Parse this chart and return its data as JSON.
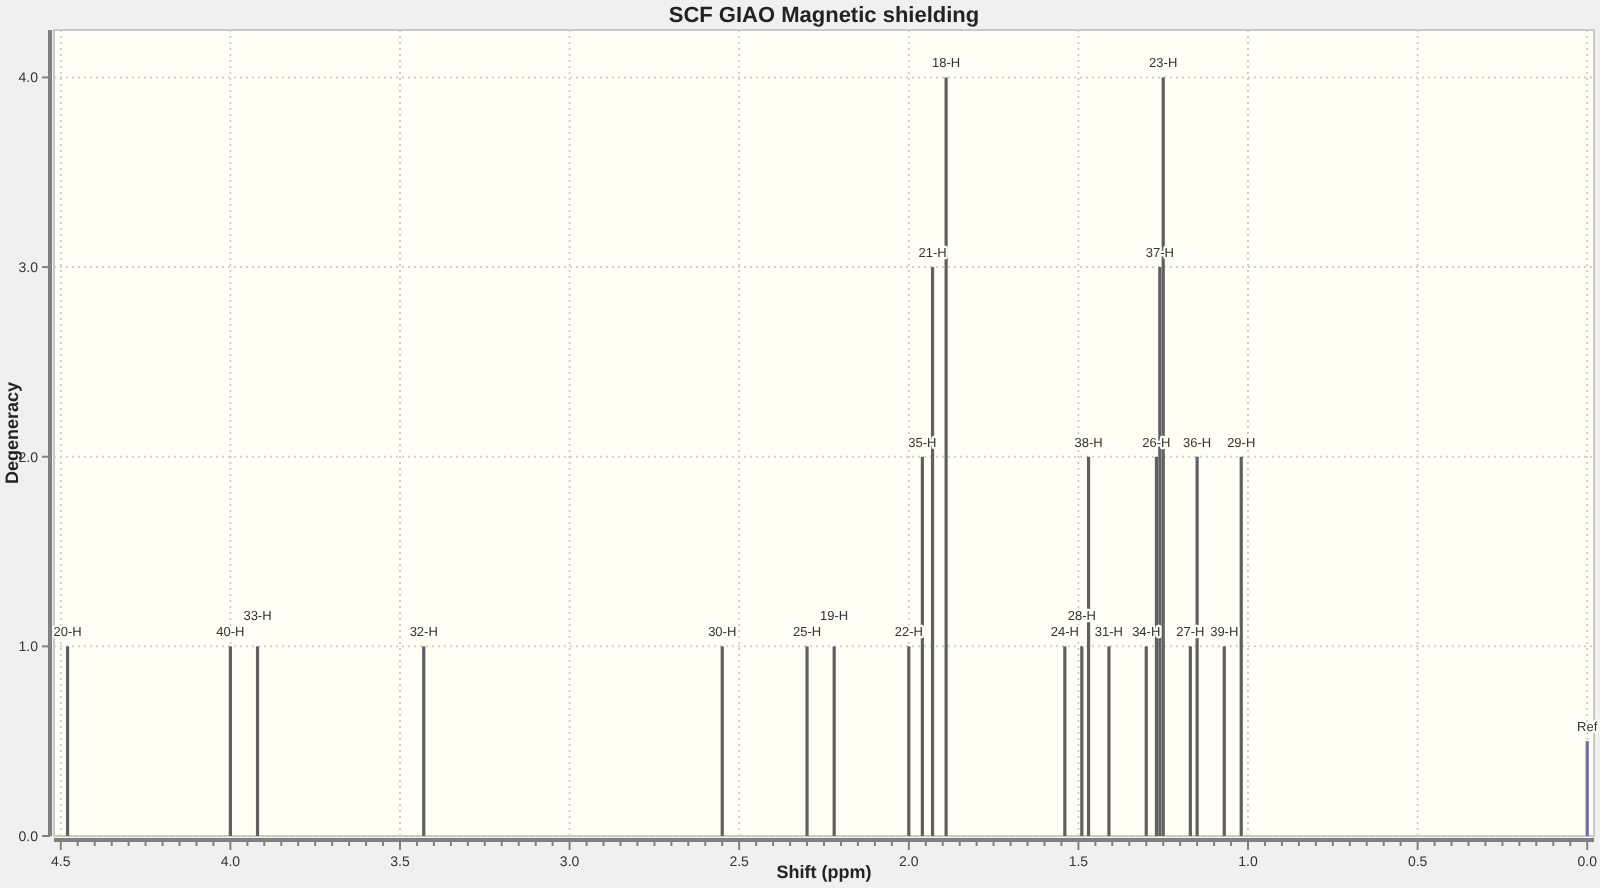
{
  "chart_data": {
    "type": "bar",
    "title": "SCF GIAO Magnetic shielding",
    "xlabel": "Shift (ppm)",
    "ylabel": "Degeneracy",
    "x": [
      4.48,
      4.0,
      3.92,
      3.43,
      2.55,
      2.3,
      2.22,
      2.0,
      1.96,
      1.93,
      1.89,
      1.54,
      1.49,
      1.47,
      1.41,
      1.3,
      1.27,
      1.26,
      1.25,
      1.17,
      1.15,
      1.07,
      1.02,
      0.0
    ],
    "values": [
      1,
      1,
      1,
      1,
      1,
      1,
      1,
      1,
      2,
      3,
      4,
      1,
      1,
      2,
      1,
      1,
      2,
      3,
      4,
      1,
      2,
      1,
      2,
      0.5
    ],
    "colors": [
      "#606060",
      "#606060",
      "#606060",
      "#606060",
      "#606060",
      "#606060",
      "#606060",
      "#606060",
      "#606060",
      "#606060",
      "#606060",
      "#606060",
      "#606060",
      "#606060",
      "#606060",
      "#606060",
      "#606060",
      "#606060",
      "#606060",
      "#606060",
      "#606060",
      "#606060",
      "#606060",
      "#7070a0"
    ],
    "annotations": [
      {
        "text": "20-H",
        "x": 4.48,
        "y": 1
      },
      {
        "text": "40-H",
        "x": 4.0,
        "y": 1
      },
      {
        "text": "33-H",
        "x": 3.92,
        "y": 1
      },
      {
        "text": "32-H",
        "x": 3.43,
        "y": 1
      },
      {
        "text": "30-H",
        "x": 2.55,
        "y": 1
      },
      {
        "text": "25-H",
        "x": 2.3,
        "y": 1
      },
      {
        "text": "19-H",
        "x": 2.22,
        "y": 1
      },
      {
        "text": "22-H",
        "x": 2.0,
        "y": 1
      },
      {
        "text": "35-H",
        "x": 1.96,
        "y": 2
      },
      {
        "text": "21-H",
        "x": 1.93,
        "y": 3
      },
      {
        "text": "18-H",
        "x": 1.89,
        "y": 4
      },
      {
        "text": "24-H",
        "x": 1.54,
        "y": 1
      },
      {
        "text": "28-H",
        "x": 1.49,
        "y": 1
      },
      {
        "text": "38-H",
        "x": 1.47,
        "y": 2
      },
      {
        "text": "31-H",
        "x": 1.41,
        "y": 1
      },
      {
        "text": "34-H",
        "x": 1.3,
        "y": 1
      },
      {
        "text": "26-H",
        "x": 1.27,
        "y": 2
      },
      {
        "text": "37-H",
        "x": 1.26,
        "y": 3
      },
      {
        "text": "23-H",
        "x": 1.25,
        "y": 4
      },
      {
        "text": "27-H",
        "x": 1.17,
        "y": 1
      },
      {
        "text": "36-H",
        "x": 1.15,
        "y": 2
      },
      {
        "text": "39-H",
        "x": 1.07,
        "y": 1
      },
      {
        "text": "29-H",
        "x": 1.02,
        "y": 2
      },
      {
        "text": "Ref",
        "x": 0.0,
        "y": 0.5
      }
    ],
    "xlim": [
      4.52,
      -0.02
    ],
    "ylim": [
      0,
      4.25
    ],
    "xticks": [
      {
        "value": 4.5,
        "label": "4.5"
      },
      {
        "value": 4.45,
        "label": null
      },
      {
        "value": 4.4,
        "label": null
      },
      {
        "value": 4.35,
        "label": null
      },
      {
        "value": 4.3,
        "label": null
      },
      {
        "value": 4.25,
        "label": null
      },
      {
        "value": 4.2,
        "label": null
      },
      {
        "value": 4.15,
        "label": null
      },
      {
        "value": 4.1,
        "label": null
      },
      {
        "value": 4.05,
        "label": null
      },
      {
        "value": 4.0,
        "label": "4.0"
      },
      {
        "value": 3.95,
        "label": null
      },
      {
        "value": 3.9,
        "label": null
      },
      {
        "value": 3.85,
        "label": null
      },
      {
        "value": 3.8,
        "label": null
      },
      {
        "value": 3.75,
        "label": null
      },
      {
        "value": 3.7,
        "label": null
      },
      {
        "value": 3.65,
        "label": null
      },
      {
        "value": 3.6,
        "label": null
      },
      {
        "value": 3.55,
        "label": null
      },
      {
        "value": 3.5,
        "label": "3.5"
      },
      {
        "value": 3.45,
        "label": null
      },
      {
        "value": 3.4,
        "label": null
      },
      {
        "value": 3.35,
        "label": null
      },
      {
        "value": 3.3,
        "label": null
      },
      {
        "value": 3.25,
        "label": null
      },
      {
        "value": 3.2,
        "label": null
      },
      {
        "value": 3.15,
        "label": null
      },
      {
        "value": 3.1,
        "label": null
      },
      {
        "value": 3.05,
        "label": null
      },
      {
        "value": 3.0,
        "label": "3.0"
      },
      {
        "value": 2.95,
        "label": null
      },
      {
        "value": 2.9,
        "label": null
      },
      {
        "value": 2.85,
        "label": null
      },
      {
        "value": 2.8,
        "label": null
      },
      {
        "value": 2.75,
        "label": null
      },
      {
        "value": 2.7,
        "label": null
      },
      {
        "value": 2.65,
        "label": null
      },
      {
        "value": 2.6,
        "label": null
      },
      {
        "value": 2.55,
        "label": null
      },
      {
        "value": 2.5,
        "label": "2.5"
      },
      {
        "value": 2.45,
        "label": null
      },
      {
        "value": 2.4,
        "label": null
      },
      {
        "value": 2.35,
        "label": null
      },
      {
        "value": 2.3,
        "label": null
      },
      {
        "value": 2.25,
        "label": null
      },
      {
        "value": 2.2,
        "label": null
      },
      {
        "value": 2.15,
        "label": null
      },
      {
        "value": 2.1,
        "label": null
      },
      {
        "value": 2.05,
        "label": null
      },
      {
        "value": 2.0,
        "label": "2.0"
      },
      {
        "value": 1.95,
        "label": null
      },
      {
        "value": 1.9,
        "label": null
      },
      {
        "value": 1.85,
        "label": null
      },
      {
        "value": 1.8,
        "label": null
      },
      {
        "value": 1.75,
        "label": null
      },
      {
        "value": 1.7,
        "label": null
      },
      {
        "value": 1.65,
        "label": null
      },
      {
        "value": 1.6,
        "label": null
      },
      {
        "value": 1.55,
        "label": null
      },
      {
        "value": 1.5,
        "label": "1.5"
      },
      {
        "value": 1.45,
        "label": null
      },
      {
        "value": 1.4,
        "label": null
      },
      {
        "value": 1.35,
        "label": null
      },
      {
        "value": 1.3,
        "label": null
      },
      {
        "value": 1.25,
        "label": null
      },
      {
        "value": 1.2,
        "label": null
      },
      {
        "value": 1.15,
        "label": null
      },
      {
        "value": 1.1,
        "label": null
      },
      {
        "value": 1.05,
        "label": null
      },
      {
        "value": 1.0,
        "label": "1.0"
      },
      {
        "value": 0.95,
        "label": null
      },
      {
        "value": 0.9,
        "label": null
      },
      {
        "value": 0.85,
        "label": null
      },
      {
        "value": 0.8,
        "label": null
      },
      {
        "value": 0.75,
        "label": null
      },
      {
        "value": 0.7,
        "label": null
      },
      {
        "value": 0.65,
        "label": null
      },
      {
        "value": 0.6,
        "label": null
      },
      {
        "value": 0.55,
        "label": null
      },
      {
        "value": 0.5,
        "label": "0.5"
      },
      {
        "value": 0.45,
        "label": null
      },
      {
        "value": 0.4,
        "label": null
      },
      {
        "value": 0.35,
        "label": null
      },
      {
        "value": 0.3,
        "label": null
      },
      {
        "value": 0.25,
        "label": null
      },
      {
        "value": 0.2,
        "label": null
      },
      {
        "value": 0.15,
        "label": null
      },
      {
        "value": 0.1,
        "label": null
      },
      {
        "value": 0.05,
        "label": null
      },
      {
        "value": 0.0,
        "label": "0.0"
      }
    ],
    "yticks": [
      {
        "value": 0,
        "label": "0.0"
      },
      {
        "value": 1,
        "label": "1.0"
      },
      {
        "value": 2,
        "label": "2.0"
      },
      {
        "value": 3,
        "label": "3.0"
      },
      {
        "value": 4,
        "label": "4.0"
      }
    ],
    "grid": true
  }
}
